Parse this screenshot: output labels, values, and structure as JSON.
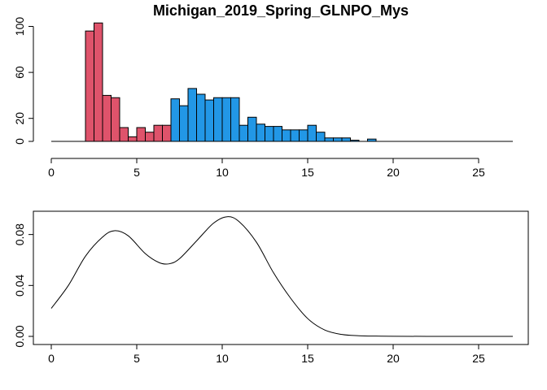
{
  "chart_data": [
    {
      "type": "bar",
      "title": "Michigan_2019_Spring_GLNPO_Mys",
      "xlabel": "",
      "ylabel": "",
      "xlim": [
        0,
        27
      ],
      "ylim": [
        0,
        105
      ],
      "xticks": [
        0,
        5,
        10,
        15,
        20,
        25
      ],
      "yticks": [
        0,
        20,
        60,
        100
      ],
      "bin_width": 0.5,
      "colors": {
        "group1": "#DF536B",
        "group2": "#2297E6"
      },
      "bins": [
        {
          "x0": 2.0,
          "count": 96,
          "group": 1
        },
        {
          "x0": 2.5,
          "count": 103,
          "group": 1
        },
        {
          "x0": 3.0,
          "count": 40,
          "group": 1
        },
        {
          "x0": 3.5,
          "count": 38,
          "group": 1
        },
        {
          "x0": 4.0,
          "count": 12,
          "group": 1
        },
        {
          "x0": 4.5,
          "count": 4,
          "group": 1
        },
        {
          "x0": 5.0,
          "count": 12,
          "group": 1
        },
        {
          "x0": 5.5,
          "count": 8,
          "group": 1
        },
        {
          "x0": 6.0,
          "count": 14,
          "group": 1
        },
        {
          "x0": 6.5,
          "count": 14,
          "group": 1
        },
        {
          "x0": 7.0,
          "count": 37,
          "group": 2
        },
        {
          "x0": 7.5,
          "count": 31,
          "group": 2
        },
        {
          "x0": 8.0,
          "count": 46,
          "group": 2
        },
        {
          "x0": 8.5,
          "count": 41,
          "group": 2
        },
        {
          "x0": 9.0,
          "count": 36,
          "group": 2
        },
        {
          "x0": 9.5,
          "count": 38,
          "group": 2
        },
        {
          "x0": 10.0,
          "count": 38,
          "group": 2
        },
        {
          "x0": 10.5,
          "count": 38,
          "group": 2
        },
        {
          "x0": 11.0,
          "count": 14,
          "group": 2
        },
        {
          "x0": 11.5,
          "count": 21,
          "group": 2
        },
        {
          "x0": 12.0,
          "count": 15,
          "group": 2
        },
        {
          "x0": 12.5,
          "count": 13,
          "group": 2
        },
        {
          "x0": 13.0,
          "count": 13,
          "group": 2
        },
        {
          "x0": 13.5,
          "count": 10,
          "group": 2
        },
        {
          "x0": 14.0,
          "count": 10,
          "group": 2
        },
        {
          "x0": 14.5,
          "count": 10,
          "group": 2
        },
        {
          "x0": 15.0,
          "count": 14,
          "group": 2
        },
        {
          "x0": 15.5,
          "count": 8,
          "group": 2
        },
        {
          "x0": 16.0,
          "count": 3,
          "group": 2
        },
        {
          "x0": 16.5,
          "count": 3,
          "group": 2
        },
        {
          "x0": 17.0,
          "count": 3,
          "group": 2
        },
        {
          "x0": 17.5,
          "count": 1,
          "group": 2
        },
        {
          "x0": 18.5,
          "count": 2,
          "group": 2
        }
      ]
    },
    {
      "type": "line",
      "title": "",
      "xlabel": "",
      "ylabel": "",
      "xlim": [
        0,
        27
      ],
      "ylim": [
        0,
        0.095
      ],
      "xticks": [
        0,
        5,
        10,
        15,
        20,
        25
      ],
      "yticks": [
        "0.00",
        "0.04",
        "0.08"
      ],
      "x": [
        0,
        1,
        2,
        3,
        3.7,
        4.5,
        5.5,
        6.3,
        6.9,
        7.5,
        8.5,
        9.5,
        10.3,
        11,
        12,
        13,
        14,
        15,
        16,
        17,
        18,
        19,
        20,
        22,
        25,
        27
      ],
      "y": [
        0.022,
        0.04,
        0.063,
        0.078,
        0.083,
        0.079,
        0.065,
        0.058,
        0.057,
        0.061,
        0.075,
        0.089,
        0.094,
        0.09,
        0.074,
        0.05,
        0.03,
        0.014,
        0.005,
        0.0015,
        0.0005,
        0.0002,
        0.0001,
        0.0,
        0.0,
        0.0
      ]
    }
  ]
}
